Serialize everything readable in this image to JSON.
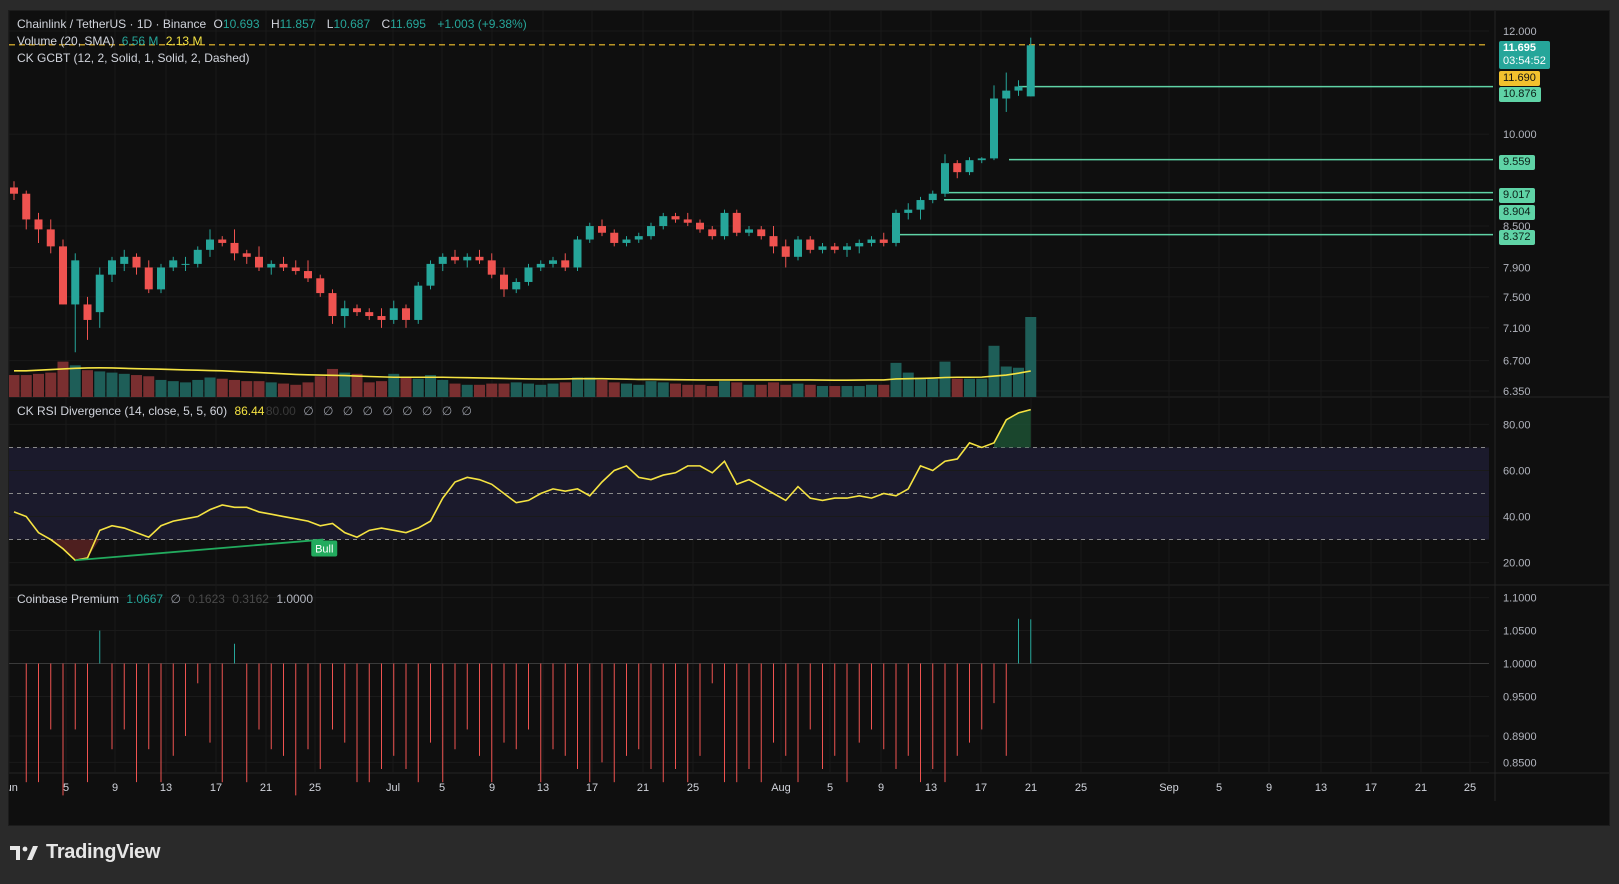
{
  "header": {
    "symbol": "Chainlink / TetherUS · 1D · Binance",
    "o_label": "O",
    "o_value": "10.693",
    "h_label": "H",
    "h_value": "11.857",
    "l_label": "L",
    "l_value": "10.687",
    "c_label": "C",
    "c_value": "11.695",
    "change": "+1.003 (+9.38%)"
  },
  "legends": {
    "volume_name": "Volume (20, SMA)",
    "volume_value": "6.56 M",
    "volume_sma": "2.13 M",
    "gcbt_name": "CK GCBT (12, 2, Solid, 1, Solid, 2, Dashed)",
    "rsi_name": "CK RSI Divergence (14, close, 5, 5, 60)",
    "rsi_value": "86.44",
    "rsi_dim": "80.00",
    "rsi_empty": "∅ ∅ ∅ ∅ ∅ ∅ ∅ ∅ ∅",
    "premium_name": "Coinbase Premium",
    "premium_value": "1.0667",
    "premium_empty": "∅",
    "premium_dim1": "0.1623",
    "premium_dim2": "0.3162",
    "premium_base": "1.0000"
  },
  "price_axis": [
    "12.000",
    "10.000",
    "8.500",
    "7.900",
    "7.500",
    "7.100",
    "6.700",
    "6.350"
  ],
  "price_labels": {
    "last_price": "11.695",
    "countdown": "03:54:52",
    "level_yellow": "11.690",
    "levels": [
      "10.876",
      "9.559",
      "9.017",
      "8.904",
      "8.372"
    ]
  },
  "rsi_axis": [
    "80.00",
    "60.00",
    "40.00",
    "20.00"
  ],
  "rsi_bull_label": "Bull",
  "premium_axis": [
    "1.1000",
    "1.0500",
    "1.0000",
    "0.9500",
    "0.8900",
    "0.8500"
  ],
  "time_axis": [
    "Jun",
    "5",
    "9",
    "13",
    "17",
    "21",
    "25",
    "Jul",
    "5",
    "9",
    "13",
    "17",
    "21",
    "25",
    "Aug",
    "5",
    "9",
    "13",
    "17",
    "21",
    "25",
    "Sep",
    "5",
    "9",
    "13",
    "17",
    "21",
    "25"
  ],
  "brand": "TradingView",
  "colors": {
    "up": "#26a69a",
    "down": "#ef5350",
    "sma": "#f5e342",
    "level": "#5fd3a6",
    "rsi": "#f5e342",
    "bull": "#22ab5e"
  },
  "chart_data": {
    "type": "candlestick",
    "title": "Chainlink / TetherUS · 1D · Binance",
    "candles": [
      [
        9.1,
        9.2,
        8.9,
        9.0
      ],
      [
        9.0,
        9.05,
        8.45,
        8.6
      ],
      [
        8.6,
        8.7,
        8.25,
        8.45
      ],
      [
        8.45,
        8.6,
        8.1,
        8.2
      ],
      [
        8.2,
        8.3,
        7.4,
        7.4
      ],
      [
        7.4,
        8.1,
        6.8,
        8.0
      ],
      [
        7.4,
        7.5,
        6.95,
        7.2
      ],
      [
        7.3,
        7.9,
        7.1,
        7.8
      ],
      [
        7.8,
        8.05,
        7.7,
        8.0
      ],
      [
        7.95,
        8.15,
        7.85,
        8.05
      ],
      [
        8.05,
        8.1,
        7.8,
        7.9
      ],
      [
        7.9,
        8.0,
        7.55,
        7.6
      ],
      [
        7.6,
        7.95,
        7.55,
        7.9
      ],
      [
        7.9,
        8.05,
        7.85,
        8.0
      ],
      [
        7.95,
        8.05,
        7.85,
        7.95
      ],
      [
        7.95,
        8.2,
        7.9,
        8.15
      ],
      [
        8.15,
        8.45,
        8.05,
        8.3
      ],
      [
        8.3,
        8.35,
        8.2,
        8.25
      ],
      [
        8.25,
        8.45,
        8.0,
        8.1
      ],
      [
        8.1,
        8.15,
        7.95,
        8.05
      ],
      [
        8.05,
        8.2,
        7.85,
        7.9
      ],
      [
        7.9,
        8.0,
        7.8,
        7.95
      ],
      [
        7.95,
        8.05,
        7.85,
        7.9
      ],
      [
        7.9,
        8.0,
        7.8,
        7.85
      ],
      [
        7.85,
        8.0,
        7.7,
        7.75
      ],
      [
        7.75,
        7.8,
        7.5,
        7.55
      ],
      [
        7.55,
        7.6,
        7.15,
        7.25
      ],
      [
        7.25,
        7.45,
        7.1,
        7.35
      ],
      [
        7.35,
        7.4,
        7.25,
        7.3
      ],
      [
        7.3,
        7.35,
        7.2,
        7.25
      ],
      [
        7.25,
        7.35,
        7.1,
        7.2
      ],
      [
        7.2,
        7.45,
        7.15,
        7.35
      ],
      [
        7.35,
        7.4,
        7.1,
        7.2
      ],
      [
        7.2,
        7.7,
        7.15,
        7.65
      ],
      [
        7.65,
        8.0,
        7.6,
        7.95
      ],
      [
        7.95,
        8.1,
        7.85,
        8.05
      ],
      [
        8.05,
        8.15,
        7.95,
        8.0
      ],
      [
        8.0,
        8.1,
        7.9,
        8.05
      ],
      [
        8.05,
        8.15,
        7.95,
        8.0
      ],
      [
        8.0,
        8.1,
        7.75,
        7.8
      ],
      [
        7.8,
        7.9,
        7.5,
        7.6
      ],
      [
        7.6,
        7.75,
        7.55,
        7.7
      ],
      [
        7.7,
        7.95,
        7.65,
        7.9
      ],
      [
        7.9,
        8.0,
        7.85,
        7.95
      ],
      [
        7.95,
        8.05,
        7.9,
        8.0
      ],
      [
        8.0,
        8.1,
        7.85,
        7.9
      ],
      [
        7.9,
        8.35,
        7.85,
        8.3
      ],
      [
        8.3,
        8.55,
        8.25,
        8.5
      ],
      [
        8.5,
        8.6,
        8.35,
        8.4
      ],
      [
        8.4,
        8.45,
        8.2,
        8.25
      ],
      [
        8.25,
        8.35,
        8.2,
        8.3
      ],
      [
        8.3,
        8.4,
        8.25,
        8.35
      ],
      [
        8.35,
        8.55,
        8.3,
        8.5
      ],
      [
        8.5,
        8.7,
        8.45,
        8.65
      ],
      [
        8.65,
        8.7,
        8.55,
        8.6
      ],
      [
        8.6,
        8.7,
        8.5,
        8.55
      ],
      [
        8.55,
        8.6,
        8.4,
        8.45
      ],
      [
        8.45,
        8.5,
        8.3,
        8.35
      ],
      [
        8.35,
        8.75,
        8.3,
        8.7
      ],
      [
        8.7,
        8.75,
        8.35,
        8.4
      ],
      [
        8.4,
        8.5,
        8.35,
        8.45
      ],
      [
        8.45,
        8.5,
        8.3,
        8.35
      ],
      [
        8.35,
        8.5,
        8.1,
        8.2
      ],
      [
        8.2,
        8.3,
        7.9,
        8.05
      ],
      [
        8.05,
        8.35,
        8.0,
        8.3
      ],
      [
        8.3,
        8.35,
        8.1,
        8.15
      ],
      [
        8.15,
        8.25,
        8.1,
        8.2
      ],
      [
        8.2,
        8.25,
        8.1,
        8.15
      ],
      [
        8.15,
        8.25,
        8.05,
        8.2
      ],
      [
        8.2,
        8.3,
        8.1,
        8.25
      ],
      [
        8.25,
        8.35,
        8.2,
        8.3
      ],
      [
        8.3,
        8.4,
        8.2,
        8.25
      ],
      [
        8.25,
        8.75,
        8.2,
        8.7
      ],
      [
        8.7,
        8.85,
        8.6,
        8.75
      ],
      [
        8.75,
        8.95,
        8.6,
        8.9
      ],
      [
        8.9,
        9.05,
        8.85,
        9.0
      ],
      [
        9.0,
        9.65,
        8.95,
        9.5
      ],
      [
        9.5,
        9.55,
        9.25,
        9.35
      ],
      [
        9.35,
        9.6,
        9.3,
        9.55
      ],
      [
        9.55,
        9.6,
        9.5,
        9.58
      ],
      [
        9.58,
        10.9,
        9.55,
        10.65
      ],
      [
        10.65,
        11.15,
        10.4,
        10.8
      ],
      [
        10.8,
        11.0,
        10.7,
        10.88
      ],
      [
        10.69,
        11.86,
        10.69,
        11.7
      ]
    ],
    "volume_millions": [
      1.8,
      1.8,
      1.9,
      2.0,
      2.9,
      2.6,
      2.2,
      2.1,
      2.0,
      1.9,
      1.8,
      1.7,
      1.4,
      1.3,
      1.2,
      1.4,
      1.6,
      1.5,
      1.4,
      1.3,
      1.3,
      1.2,
      1.1,
      1.0,
      1.2,
      1.7,
      2.3,
      2.0,
      1.9,
      1.2,
      1.3,
      1.9,
      1.6,
      1.5,
      1.8,
      1.4,
      1.1,
      1.0,
      1.0,
      1.1,
      1.1,
      1.2,
      1.1,
      1.0,
      1.1,
      1.2,
      1.6,
      1.6,
      1.4,
      1.2,
      1.1,
      1.0,
      1.3,
      1.2,
      1.1,
      1.0,
      1.0,
      0.9,
      1.3,
      1.2,
      1.0,
      1.0,
      1.2,
      1.0,
      1.1,
      1.0,
      0.9,
      0.9,
      0.9,
      0.9,
      1.0,
      1.0,
      2.8,
      2.0,
      1.6,
      1.5,
      2.9,
      1.5,
      1.5,
      1.5,
      4.2,
      2.5,
      2.4,
      6.56
    ],
    "volume_sma_millions": [
      2.15,
      2.15,
      2.2,
      2.25,
      2.3,
      2.35,
      2.38,
      2.39,
      2.38,
      2.35,
      2.32,
      2.3,
      2.28,
      2.25,
      2.22,
      2.2,
      2.17,
      2.15,
      2.1,
      2.05,
      2.0,
      1.95,
      1.9,
      1.85,
      1.82,
      1.8,
      1.78,
      1.76,
      1.72,
      1.68,
      1.65,
      1.62,
      1.62,
      1.62,
      1.62,
      1.62,
      1.6,
      1.58,
      1.56,
      1.54,
      1.52,
      1.5,
      1.48,
      1.47,
      1.47,
      1.48,
      1.5,
      1.5,
      1.5,
      1.48,
      1.46,
      1.44,
      1.44,
      1.43,
      1.42,
      1.41,
      1.4,
      1.4,
      1.4,
      1.4,
      1.4,
      1.4,
      1.4,
      1.4,
      1.4,
      1.4,
      1.39,
      1.38,
      1.38,
      1.39,
      1.4,
      1.4,
      1.48,
      1.5,
      1.52,
      1.55,
      1.6,
      1.62,
      1.62,
      1.63,
      1.72,
      1.8,
      1.95,
      2.13
    ],
    "rsi": [
      42,
      40,
      33,
      30,
      26,
      21,
      22,
      34,
      36,
      35,
      33,
      31,
      36,
      38,
      39,
      40,
      43,
      45,
      44,
      44,
      42,
      41,
      40,
      39,
      38,
      36,
      37,
      33,
      31,
      34,
      35,
      34,
      33,
      35,
      38,
      48,
      55,
      57,
      56,
      54,
      50,
      46,
      47,
      50,
      52,
      51,
      52,
      49,
      55,
      60,
      62,
      57,
      56,
      58,
      59,
      62,
      62,
      59,
      64,
      54,
      56,
      53,
      50,
      47,
      53,
      48,
      47,
      48,
      48,
      49,
      48,
      50,
      49,
      52,
      62,
      60,
      64,
      65,
      72,
      70,
      72,
      82,
      85,
      86.44
    ],
    "rsi_levels": [
      70,
      50,
      30
    ],
    "premium": [
      1.0,
      0.82,
      0.82,
      0.9,
      0.8,
      0.9,
      0.82,
      1.05,
      0.87,
      0.9,
      0.82,
      0.87,
      0.82,
      0.86,
      0.89,
      0.97,
      0.88,
      0.82,
      1.03,
      0.82,
      0.9,
      0.87,
      0.86,
      0.8,
      0.87,
      0.84,
      0.9,
      0.88,
      0.82,
      0.82,
      0.84,
      0.86,
      0.84,
      0.82,
      0.88,
      0.82,
      0.87,
      0.9,
      0.86,
      0.82,
      0.88,
      0.87,
      0.9,
      0.82,
      0.87,
      0.86,
      0.84,
      0.82,
      0.85,
      0.82,
      0.86,
      0.87,
      0.84,
      0.82,
      0.84,
      0.82,
      0.86,
      0.97,
      0.82,
      0.82,
      0.84,
      0.82,
      0.88,
      0.86,
      0.82,
      0.9,
      0.84,
      0.86,
      0.82,
      0.88,
      0.9,
      0.87,
      0.84,
      0.86,
      0.82,
      0.84,
      0.82,
      0.86,
      0.88,
      0.9,
      0.94,
      0.86,
      1.068,
      1.067
    ],
    "levels": [
      10.876,
      9.559,
      9.017,
      8.904,
      8.372
    ],
    "yellow_level": 11.69
  }
}
